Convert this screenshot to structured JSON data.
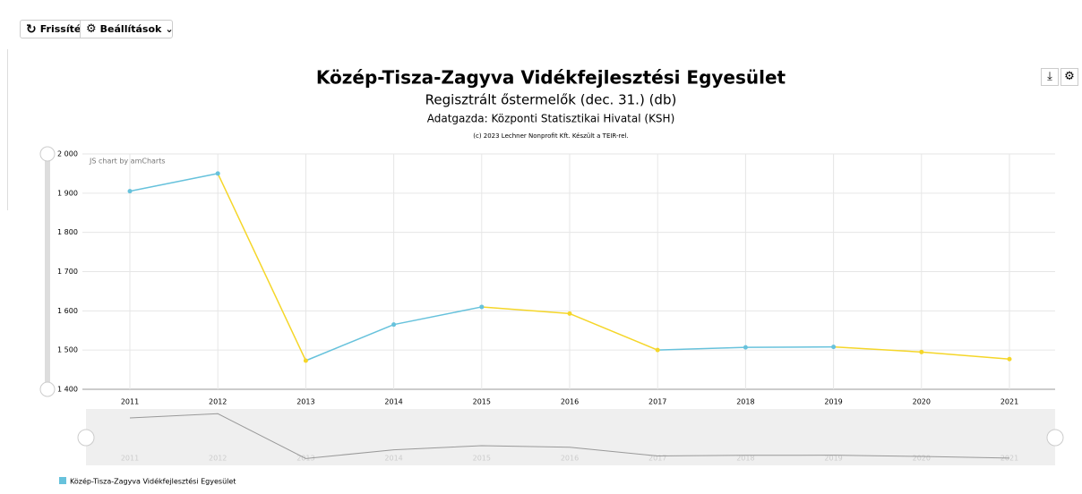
{
  "toolbar": {
    "refresh": "Frissítés",
    "settings": "Beállítások"
  },
  "chart_data": {
    "type": "line",
    "title": "Közép-Tisza-Zagyva Vidékfejlesztési Egyesület",
    "subtitle": "Regisztrált őstermelők (dec. 31.) (db)",
    "source": "Adatgazda: Központi Statisztikai Hivatal (KSH)",
    "copyright": "(c) 2023 Lechner Nonprofit Kft. Készült a TEIR-rel.",
    "credit": "JS chart by amCharts",
    "categories": [
      "2011",
      "2012",
      "2013",
      "2014",
      "2015",
      "2016",
      "2017",
      "2018",
      "2019",
      "2020",
      "2021"
    ],
    "series": [
      {
        "name": "Közép-Tisza-Zagyva Vidékfejlesztési Egyesület",
        "color": "#67c2dc",
        "decrease_color": "#f5d629",
        "values": [
          1905,
          1950,
          1473,
          1565,
          1610,
          1593,
          1500,
          1507,
          1508,
          1495,
          1477
        ]
      }
    ],
    "ylim": [
      1400,
      2000
    ],
    "yticks": [
      {
        "value": 1400,
        "label": "1 400"
      },
      {
        "value": 1500,
        "label": "1 500"
      },
      {
        "value": 1600,
        "label": "1 600"
      },
      {
        "value": 1700,
        "label": "1 700"
      },
      {
        "value": 1800,
        "label": "1 800"
      },
      {
        "value": 1900,
        "label": "1 900"
      },
      {
        "value": 2000,
        "label": "2 000"
      }
    ],
    "grid": true
  }
}
